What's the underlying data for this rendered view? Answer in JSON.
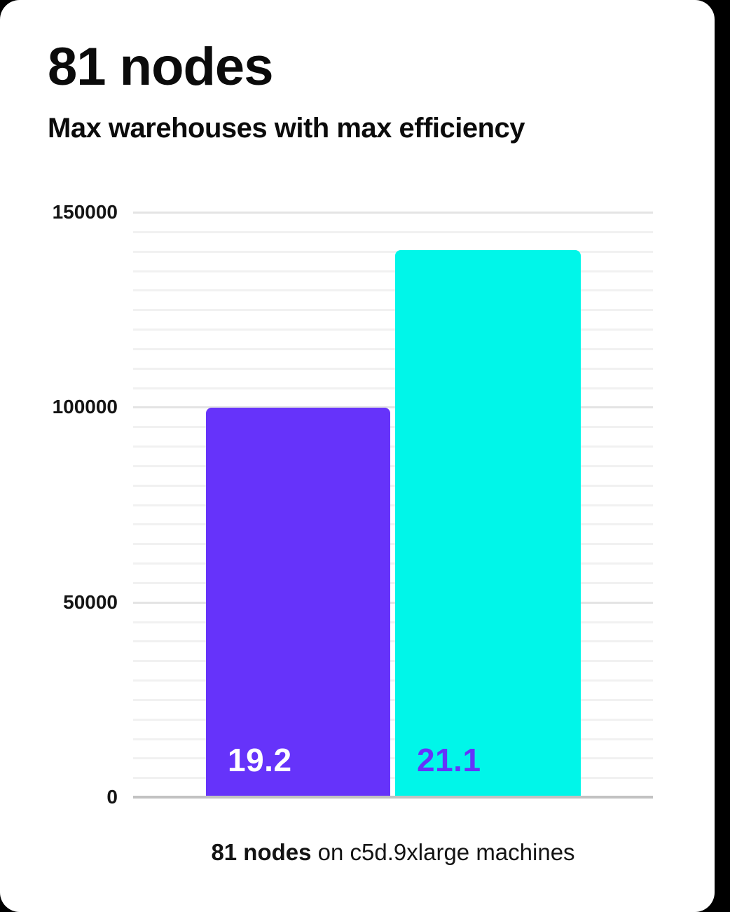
{
  "page": {
    "background_color": "#000000",
    "card_color": "#ffffff"
  },
  "header": {
    "title": "81 nodes",
    "subtitle": "Max warehouses with max efficiency"
  },
  "caption": {
    "bold": "81 nodes",
    "rest": " on c5d.9xlarge machines"
  },
  "chart_data": {
    "type": "bar",
    "title": "81 nodes",
    "subtitle": "Max warehouses with max efficiency",
    "caption": "81 nodes on c5d.9xlarge machines",
    "ylim": [
      0,
      150000
    ],
    "yticks": [
      0,
      50000,
      100000,
      150000
    ],
    "minor_gridline_step": 5000,
    "grid": true,
    "legend": false,
    "bars": [
      {
        "label": "19.2",
        "value": 99500,
        "color": "#6633fa",
        "label_color": "#ffffff"
      },
      {
        "label": "21.1",
        "value": 140000,
        "color": "#00f6e9",
        "label_color": "#6633fa"
      }
    ],
    "colors": {
      "axis_line": "#c2c2c2",
      "major_grid": "#e4e4e4",
      "minor_grid": "#f1f1f1",
      "text": "#0b0b0b"
    }
  }
}
